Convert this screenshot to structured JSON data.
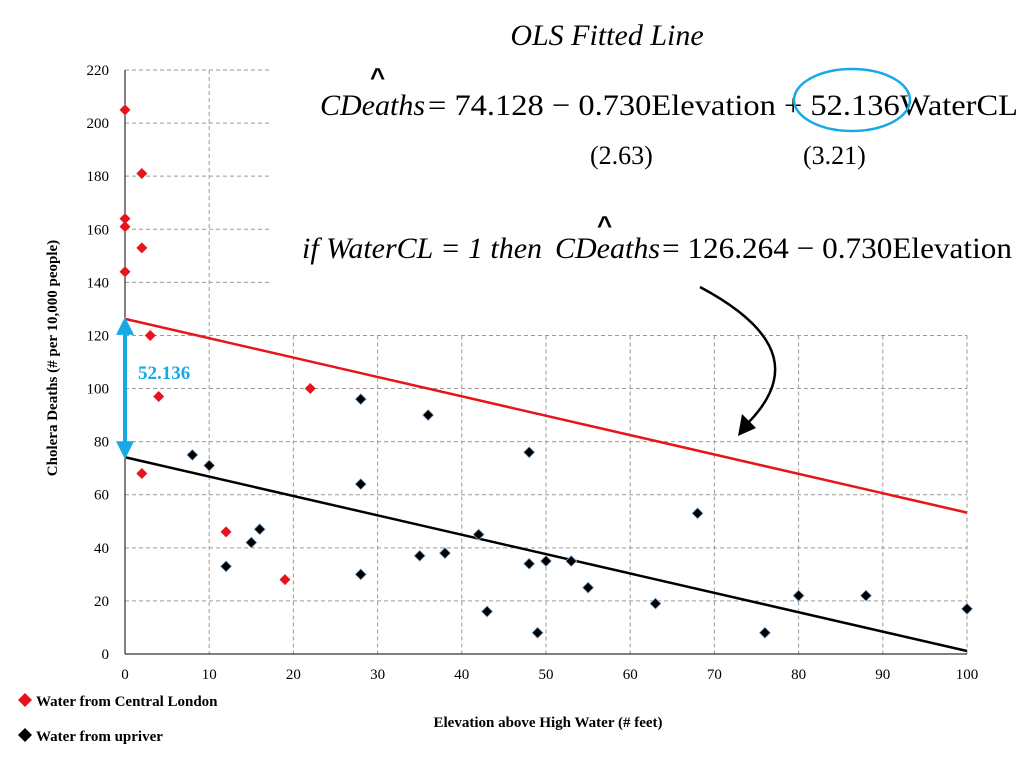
{
  "chart_data": {
    "type": "scatter",
    "title": "OLS Fitted Line",
    "xlabel": "Elevation above High Water (# feet)",
    "ylabel": "Cholera Deaths (# per 10,000 people)",
    "xlim": [
      0,
      100
    ],
    "ylim": [
      0,
      220
    ],
    "xticks": [
      0,
      10,
      20,
      30,
      40,
      50,
      60,
      70,
      80,
      90,
      100
    ],
    "yticks": [
      0,
      20,
      40,
      60,
      80,
      100,
      120,
      140,
      160,
      180,
      200,
      220
    ],
    "grid": true,
    "legend_position": "bottom-left",
    "series": [
      {
        "name": "Water from Central London",
        "color": "#e8141b",
        "marker": "diamond",
        "points": [
          [
            0,
            205
          ],
          [
            0,
            164
          ],
          [
            0,
            161
          ],
          [
            0,
            144
          ],
          [
            2,
            181
          ],
          [
            2,
            153
          ],
          [
            3,
            120
          ],
          [
            4,
            97
          ],
          [
            2,
            68
          ],
          [
            12,
            46
          ],
          [
            19,
            28
          ],
          [
            22,
            100
          ]
        ]
      },
      {
        "name": "Water from upriver",
        "color": "#000000",
        "marker": "diamond",
        "points": [
          [
            8,
            75
          ],
          [
            10,
            71
          ],
          [
            12,
            33
          ],
          [
            15,
            42
          ],
          [
            16,
            47
          ],
          [
            28,
            96
          ],
          [
            28,
            64
          ],
          [
            28,
            30
          ],
          [
            35,
            37
          ],
          [
            36,
            90
          ],
          [
            38,
            38
          ],
          [
            42,
            45
          ],
          [
            43,
            16
          ],
          [
            48,
            76
          ],
          [
            48,
            34
          ],
          [
            49,
            8
          ],
          [
            50,
            35
          ],
          [
            53,
            35
          ],
          [
            55,
            25
          ],
          [
            63,
            19
          ],
          [
            68,
            53
          ],
          [
            76,
            8
          ],
          [
            80,
            22
          ],
          [
            88,
            22
          ],
          [
            100,
            17
          ]
        ]
      }
    ],
    "fitted_lines": [
      {
        "group": "Water from Central London",
        "color": "#e8141b",
        "intercept": 126.264,
        "slope": -0.73
      },
      {
        "group": "Water from upriver",
        "color": "#000000",
        "intercept": 74.128,
        "slope": -0.73
      }
    ],
    "annotations": {
      "difference_label": "52.136",
      "difference_color": "#17a9e6",
      "hat_symbol": "^",
      "equation_1": {
        "lhs": "CDeaths",
        "rhs": "= 74.128 − 0.730Elevation + 52.136WaterCL",
        "circled_coefficient": "52.136",
        "std_err_elevation": "(2.63)",
        "std_err_watercl": "(3.21)"
      },
      "equation_2": {
        "prefix": "if WaterCL = 1 then",
        "lhs": "CDeaths",
        "rhs": "= 126.264 − 0.730Elevation"
      }
    }
  }
}
